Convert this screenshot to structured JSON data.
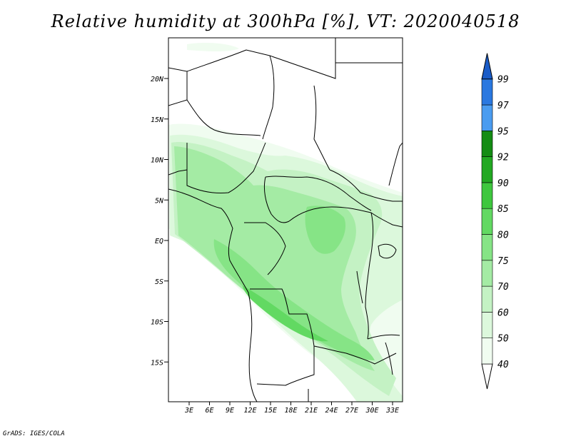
{
  "title": "Relative humidity at 300hPa [%], VT: 2020040518",
  "credit": "GrADS: IGES/COLA",
  "map": {
    "lat_labels": [
      {
        "text": "20N",
        "lat": 20
      },
      {
        "text": "15N",
        "lat": 15
      },
      {
        "text": "10N",
        "lat": 10
      },
      {
        "text": "5N",
        "lat": 5
      },
      {
        "text": "EQ",
        "lat": 0
      },
      {
        "text": "5S",
        "lat": -5
      },
      {
        "text": "10S",
        "lat": -10
      },
      {
        "text": "15S",
        "lat": -15
      }
    ],
    "lon_labels": [
      {
        "text": "3E",
        "lon": 3
      },
      {
        "text": "6E",
        "lon": 6
      },
      {
        "text": "9E",
        "lon": 9
      },
      {
        "text": "12E",
        "lon": 12
      },
      {
        "text": "15E",
        "lon": 15
      },
      {
        "text": "18E",
        "lon": 18
      },
      {
        "text": "21E",
        "lon": 21
      },
      {
        "text": "24E",
        "lon": 24
      },
      {
        "text": "27E",
        "lon": 27
      },
      {
        "text": "30E",
        "lon": 30
      },
      {
        "text": "33E",
        "lon": 33
      }
    ],
    "land_fill": "#ffffff",
    "border_color": "#000000"
  },
  "colorbar": {
    "levels": [
      {
        "label": "40",
        "color": "#f0fcf0"
      },
      {
        "label": "50",
        "color": "#dcf8dc"
      },
      {
        "label": "60",
        "color": "#c4f2c4"
      },
      {
        "label": "70",
        "color": "#a4eba4"
      },
      {
        "label": "75",
        "color": "#86e486"
      },
      {
        "label": "80",
        "color": "#62d962"
      },
      {
        "label": "85",
        "color": "#3ec73e"
      },
      {
        "label": "90",
        "color": "#22a822"
      },
      {
        "label": "92",
        "color": "#148c14"
      },
      {
        "label": "95",
        "color": "#4a9cf0"
      },
      {
        "label": "97",
        "color": "#2a78e0"
      },
      {
        "label": "99",
        "color": "#1a5cc8"
      }
    ]
  }
}
